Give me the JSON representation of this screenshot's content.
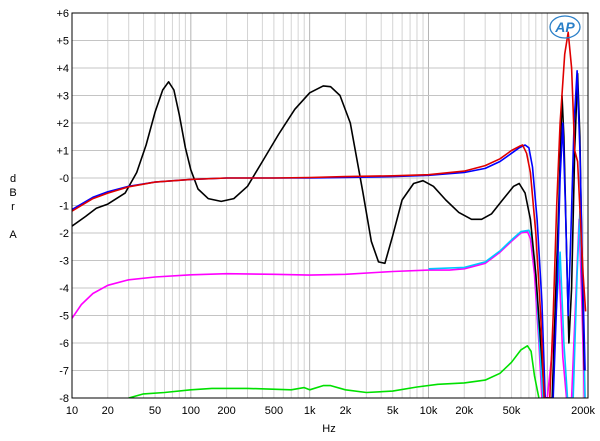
{
  "chart_data": {
    "type": "line",
    "logo": "AP",
    "xlabel": "Hz",
    "ylabel_lines": [
      "d",
      "B",
      "r",
      "",
      "A"
    ],
    "xscale": "log",
    "xlim": [
      10,
      220000
    ],
    "ylim": [
      -8,
      6
    ],
    "grid": true,
    "x_ticks": [
      {
        "value": 10,
        "label": "10"
      },
      {
        "value": 20,
        "label": "20"
      },
      {
        "value": 50,
        "label": "50"
      },
      {
        "value": 100,
        "label": "100"
      },
      {
        "value": 200,
        "label": "200"
      },
      {
        "value": 500,
        "label": "500"
      },
      {
        "value": 1000,
        "label": "1k"
      },
      {
        "value": 2000,
        "label": "2k"
      },
      {
        "value": 5000,
        "label": "5k"
      },
      {
        "value": 10000,
        "label": "10k"
      },
      {
        "value": 20000,
        "label": "20k"
      },
      {
        "value": 50000,
        "label": "50k"
      },
      {
        "value": 200000,
        "label": "200k"
      }
    ],
    "y_ticks": [
      {
        "value": 6,
        "label": "+6"
      },
      {
        "value": 5,
        "label": "+5"
      },
      {
        "value": 4,
        "label": "+4"
      },
      {
        "value": 3,
        "label": "+3"
      },
      {
        "value": 2,
        "label": "+2"
      },
      {
        "value": 1,
        "label": "+1"
      },
      {
        "value": 0,
        "label": "-0"
      },
      {
        "value": -1,
        "label": "-1"
      },
      {
        "value": -2,
        "label": "-2"
      },
      {
        "value": -3,
        "label": "-3"
      },
      {
        "value": -4,
        "label": "-4"
      },
      {
        "value": -5,
        "label": "-5"
      },
      {
        "value": -6,
        "label": "-6"
      },
      {
        "value": -7,
        "label": "-7"
      },
      {
        "value": -8,
        "label": "-8"
      }
    ],
    "series": [
      {
        "color": "#00e000",
        "points": [
          [
            30,
            -8
          ],
          [
            40,
            -7.85
          ],
          [
            60,
            -7.8
          ],
          [
            100,
            -7.7
          ],
          [
            150,
            -7.65
          ],
          [
            300,
            -7.65
          ],
          [
            700,
            -7.7
          ],
          [
            900,
            -7.62
          ],
          [
            1000,
            -7.7
          ],
          [
            1300,
            -7.55
          ],
          [
            1500,
            -7.55
          ],
          [
            2000,
            -7.7
          ],
          [
            3000,
            -7.8
          ],
          [
            5000,
            -7.75
          ],
          [
            8000,
            -7.6
          ],
          [
            12000,
            -7.5
          ],
          [
            20000,
            -7.45
          ],
          [
            30000,
            -7.35
          ],
          [
            40000,
            -7.1
          ],
          [
            50000,
            -6.7
          ],
          [
            60000,
            -6.25
          ],
          [
            68000,
            -6.1
          ],
          [
            73000,
            -6.3
          ],
          [
            78000,
            -7.2
          ],
          [
            85000,
            -8
          ]
        ]
      },
      {
        "color": "#ff00ff",
        "points": [
          [
            10,
            -5.1
          ],
          [
            12,
            -4.6
          ],
          [
            15,
            -4.2
          ],
          [
            20,
            -3.9
          ],
          [
            30,
            -3.7
          ],
          [
            50,
            -3.6
          ],
          [
            100,
            -3.52
          ],
          [
            200,
            -3.48
          ],
          [
            500,
            -3.5
          ],
          [
            1000,
            -3.53
          ],
          [
            2000,
            -3.5
          ],
          [
            5000,
            -3.4
          ],
          [
            10000,
            -3.35
          ],
          [
            15000,
            -3.35
          ],
          [
            20000,
            -3.3
          ],
          [
            30000,
            -3.1
          ],
          [
            40000,
            -2.7
          ],
          [
            50000,
            -2.3
          ],
          [
            60000,
            -2.0
          ],
          [
            68000,
            -1.95
          ],
          [
            72000,
            -2.2
          ],
          [
            78000,
            -3.5
          ],
          [
            85000,
            -6
          ],
          [
            90000,
            -8
          ],
          [
            100000,
            -8
          ],
          [
            115000,
            -5.5
          ],
          [
            125000,
            -3
          ],
          [
            135000,
            -6.5
          ],
          [
            145000,
            -8
          ],
          [
            160000,
            -8
          ],
          [
            175000,
            -4
          ],
          [
            185000,
            -1.5
          ],
          [
            195000,
            -4.5
          ],
          [
            205000,
            -8
          ]
        ]
      },
      {
        "color": "#00c8ff",
        "points": [
          [
            10000,
            -3.3
          ],
          [
            20000,
            -3.25
          ],
          [
            30000,
            -3.05
          ],
          [
            40000,
            -2.65
          ],
          [
            50000,
            -2.25
          ],
          [
            60000,
            -1.95
          ],
          [
            70000,
            -1.9
          ],
          [
            74000,
            -2.15
          ],
          [
            80000,
            -3.5
          ],
          [
            86000,
            -6
          ],
          [
            92000,
            -8
          ],
          [
            110000,
            -8
          ],
          [
            118000,
            -5
          ],
          [
            128000,
            -2.7
          ],
          [
            138000,
            -6
          ],
          [
            148000,
            -8
          ],
          [
            165000,
            -8
          ],
          [
            178000,
            -3.5
          ],
          [
            188000,
            -1.2
          ],
          [
            198000,
            -4
          ],
          [
            208000,
            -8
          ]
        ]
      },
      {
        "color": "#000000",
        "points": [
          [
            10,
            -1.75
          ],
          [
            13,
            -1.4
          ],
          [
            16,
            -1.1
          ],
          [
            20,
            -0.95
          ],
          [
            28,
            -0.55
          ],
          [
            35,
            0.2
          ],
          [
            42,
            1.2
          ],
          [
            50,
            2.4
          ],
          [
            58,
            3.2
          ],
          [
            65,
            3.5
          ],
          [
            72,
            3.2
          ],
          [
            80,
            2.3
          ],
          [
            90,
            1.1
          ],
          [
            100,
            0.3
          ],
          [
            115,
            -0.4
          ],
          [
            140,
            -0.75
          ],
          [
            180,
            -0.85
          ],
          [
            230,
            -0.75
          ],
          [
            300,
            -0.3
          ],
          [
            400,
            0.6
          ],
          [
            550,
            1.6
          ],
          [
            750,
            2.5
          ],
          [
            1000,
            3.1
          ],
          [
            1300,
            3.35
          ],
          [
            1500,
            3.32
          ],
          [
            1800,
            3.0
          ],
          [
            2200,
            2.0
          ],
          [
            2800,
            -0.5
          ],
          [
            3300,
            -2.3
          ],
          [
            3800,
            -3.05
          ],
          [
            4300,
            -3.1
          ],
          [
            5000,
            -2.1
          ],
          [
            6000,
            -0.8
          ],
          [
            7500,
            -0.2
          ],
          [
            9000,
            -0.1
          ],
          [
            11000,
            -0.3
          ],
          [
            14000,
            -0.8
          ],
          [
            18000,
            -1.25
          ],
          [
            23000,
            -1.5
          ],
          [
            28000,
            -1.5
          ],
          [
            34000,
            -1.3
          ],
          [
            42000,
            -0.8
          ],
          [
            52000,
            -0.3
          ],
          [
            58000,
            -0.2
          ],
          [
            65000,
            -0.55
          ],
          [
            72000,
            -1.5
          ],
          [
            80000,
            -3.5
          ],
          [
            88000,
            -6
          ],
          [
            95000,
            -8
          ],
          [
            110000,
            -8
          ],
          [
            118000,
            -4
          ],
          [
            125000,
            -1
          ],
          [
            133000,
            3.0
          ],
          [
            138000,
            1.5
          ],
          [
            146000,
            -3
          ],
          [
            152000,
            -6
          ],
          [
            160000,
            -4
          ],
          [
            170000,
            1
          ],
          [
            180000,
            3.8
          ],
          [
            188000,
            1.5
          ],
          [
            196000,
            -3
          ],
          [
            205000,
            -7
          ]
        ]
      },
      {
        "color": "#0000ff",
        "points": [
          [
            10,
            -1.15
          ],
          [
            15,
            -0.7
          ],
          [
            20,
            -0.5
          ],
          [
            30,
            -0.3
          ],
          [
            50,
            -0.15
          ],
          [
            100,
            -0.05
          ],
          [
            200,
            0
          ],
          [
            500,
            0
          ],
          [
            1000,
            0
          ],
          [
            2000,
            0.02
          ],
          [
            5000,
            0.05
          ],
          [
            10000,
            0.1
          ],
          [
            20000,
            0.2
          ],
          [
            30000,
            0.35
          ],
          [
            40000,
            0.6
          ],
          [
            50000,
            0.9
          ],
          [
            58000,
            1.1
          ],
          [
            65000,
            1.2
          ],
          [
            70000,
            1.1
          ],
          [
            75000,
            0.4
          ],
          [
            82000,
            -1.5
          ],
          [
            90000,
            -4.5
          ],
          [
            96000,
            -8
          ],
          [
            112000,
            -8
          ],
          [
            120000,
            -4.5
          ],
          [
            128000,
            0
          ],
          [
            135000,
            2
          ],
          [
            142000,
            -1
          ],
          [
            150000,
            -5
          ],
          [
            158000,
            -2
          ],
          [
            168000,
            2
          ],
          [
            178000,
            3.9
          ],
          [
            188000,
            1
          ],
          [
            198000,
            -3.5
          ],
          [
            208000,
            -7
          ]
        ]
      },
      {
        "color": "#e00000",
        "points": [
          [
            10,
            -1.2
          ],
          [
            15,
            -0.75
          ],
          [
            20,
            -0.55
          ],
          [
            30,
            -0.32
          ],
          [
            50,
            -0.15
          ],
          [
            100,
            -0.05
          ],
          [
            200,
            0
          ],
          [
            500,
            0
          ],
          [
            1000,
            0.02
          ],
          [
            2000,
            0.05
          ],
          [
            5000,
            0.08
          ],
          [
            10000,
            0.12
          ],
          [
            20000,
            0.25
          ],
          [
            30000,
            0.45
          ],
          [
            40000,
            0.7
          ],
          [
            50000,
            1.0
          ],
          [
            58000,
            1.15
          ],
          [
            62000,
            1.2
          ],
          [
            67000,
            0.9
          ],
          [
            72000,
            0.2
          ],
          [
            80000,
            -2
          ],
          [
            88000,
            -5
          ],
          [
            94000,
            -8
          ],
          [
            105000,
            -8
          ],
          [
            112000,
            -5
          ],
          [
            120000,
            -1
          ],
          [
            128000,
            2
          ],
          [
            140000,
            4.5
          ],
          [
            150000,
            5.3
          ],
          [
            160000,
            4.0
          ],
          [
            170000,
            1.0
          ],
          [
            180000,
            0.6
          ],
          [
            190000,
            -1.5
          ],
          [
            200000,
            -3.5
          ],
          [
            210000,
            -4.85
          ]
        ]
      }
    ]
  }
}
